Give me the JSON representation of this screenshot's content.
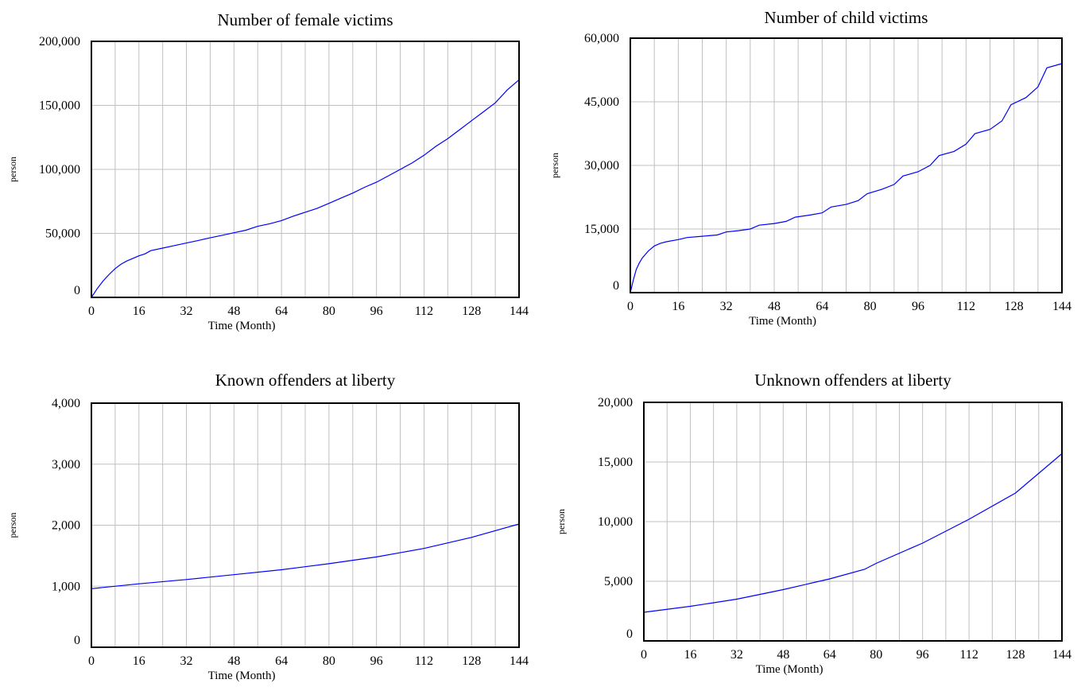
{
  "chart_data": [
    {
      "type": "line",
      "title": "Number of female victims",
      "xlabel": "Time (Month)",
      "ylabel": "person",
      "xlim": [
        0,
        144
      ],
      "ylim": [
        0,
        200000
      ],
      "xticks": [
        0,
        16,
        32,
        48,
        64,
        80,
        96,
        112,
        128,
        144
      ],
      "xtick_labels": [
        "0",
        "16",
        "32",
        "48",
        "64",
        "80",
        "96",
        "112",
        "128",
        "144"
      ],
      "yticks": [
        0,
        50000,
        100000,
        150000,
        200000
      ],
      "ytick_labels": [
        "0",
        "50,000",
        "100,000",
        "150,000",
        "200,000"
      ],
      "grid": true,
      "line_color": "#0000ff",
      "x": [
        0,
        2,
        4,
        6,
        8,
        10,
        12,
        14,
        16,
        18,
        20,
        24,
        28,
        32,
        36,
        40,
        44,
        48,
        52,
        56,
        60,
        64,
        68,
        72,
        76,
        80,
        84,
        88,
        92,
        96,
        100,
        104,
        108,
        112,
        116,
        120,
        124,
        128,
        132,
        136,
        140,
        144
      ],
      "y": [
        0,
        7000,
        13000,
        18000,
        22500,
        26000,
        28500,
        30500,
        32500,
        34000,
        36500,
        38500,
        40500,
        42500,
        44500,
        46500,
        48500,
        50500,
        52500,
        55500,
        57500,
        60000,
        63500,
        66500,
        69500,
        73500,
        77500,
        81500,
        86000,
        90000,
        95000,
        100000,
        105000,
        111000,
        118000,
        124000,
        131000,
        138000,
        145000,
        152000,
        162000,
        170000
      ]
    },
    {
      "type": "line",
      "title": "Number of child victims",
      "xlabel": "Time (Month)",
      "ylabel": "person",
      "xlim": [
        0,
        144
      ],
      "ylim": [
        0,
        60000
      ],
      "xticks": [
        0,
        16,
        32,
        48,
        64,
        80,
        96,
        112,
        128,
        144
      ],
      "xtick_labels": [
        "0",
        "16",
        "32",
        "48",
        "64",
        "80",
        "96",
        "112",
        "128",
        "144"
      ],
      "yticks": [
        0,
        15000,
        30000,
        45000,
        60000
      ],
      "ytick_labels": [
        "0",
        "15,000",
        "30,000",
        "45,000",
        "60,000"
      ],
      "grid": true,
      "line_color": "#0000ff",
      "x": [
        0,
        1,
        2,
        3,
        4,
        6,
        8,
        10,
        12,
        16,
        19,
        24,
        29,
        32,
        36,
        40,
        43,
        48,
        52,
        55,
        60,
        64,
        67,
        72,
        76,
        79,
        84,
        88,
        91,
        96,
        100,
        103,
        108,
        112,
        115,
        120,
        124,
        127,
        132,
        136,
        139,
        144
      ],
      "y": [
        0,
        3000,
        5500,
        7000,
        8200,
        9800,
        11000,
        11600,
        12000,
        12500,
        13000,
        13300,
        13600,
        14300,
        14600,
        15000,
        15900,
        16300,
        16800,
        17800,
        18300,
        18800,
        20200,
        20800,
        21700,
        23300,
        24400,
        25500,
        27500,
        28500,
        30000,
        32300,
        33300,
        35000,
        37500,
        38500,
        40500,
        44300,
        46000,
        48500,
        53000,
        54000
      ]
    },
    {
      "type": "line",
      "title": "Known offenders at liberty",
      "xlabel": "Time (Month)",
      "ylabel": "person",
      "xlim": [
        0,
        144
      ],
      "ylim": [
        0,
        4000
      ],
      "xticks": [
        0,
        16,
        32,
        48,
        64,
        80,
        96,
        112,
        128,
        144
      ],
      "xtick_labels": [
        "0",
        "16",
        "32",
        "48",
        "64",
        "80",
        "96",
        "112",
        "128",
        "144"
      ],
      "yticks": [
        0,
        1000,
        2000,
        3000,
        4000
      ],
      "ytick_labels": [
        "0",
        "1,000",
        "2,000",
        "3,000",
        "4,000"
      ],
      "grid": true,
      "line_color": "#0000ff",
      "x": [
        0,
        16,
        32,
        48,
        64,
        80,
        96,
        112,
        128,
        144
      ],
      "y": [
        960,
        1040,
        1110,
        1190,
        1270,
        1370,
        1480,
        1620,
        1800,
        2020
      ]
    },
    {
      "type": "line",
      "title": "Unknown offenders at liberty",
      "xlabel": "Time (Month)",
      "ylabel": "person",
      "xlim": [
        0,
        144
      ],
      "ylim": [
        0,
        20000
      ],
      "xticks": [
        0,
        16,
        32,
        48,
        64,
        80,
        96,
        112,
        128,
        144
      ],
      "xtick_labels": [
        "0",
        "16",
        "32",
        "48",
        "64",
        "80",
        "96",
        "112",
        "128",
        "144"
      ],
      "yticks": [
        0,
        5000,
        10000,
        15000,
        20000
      ],
      "ytick_labels": [
        "0",
        "5,000",
        "10,000",
        "15,000",
        "20,000"
      ],
      "grid": true,
      "line_color": "#0000ff",
      "x": [
        0,
        16,
        32,
        48,
        64,
        76,
        80,
        96,
        112,
        128,
        144
      ],
      "y": [
        2400,
        2900,
        3500,
        4300,
        5200,
        6000,
        6500,
        8200,
        10200,
        12400,
        15700
      ]
    }
  ]
}
